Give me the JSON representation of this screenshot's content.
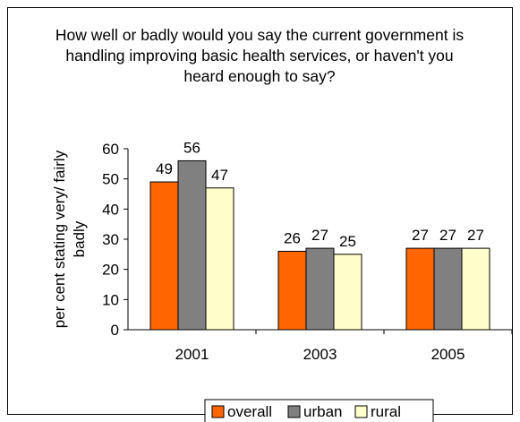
{
  "chart_data": {
    "type": "bar",
    "title": "How well or badly would you say the current government is handling improving basic health services, or haven't you heard enough to say?",
    "ylabel_lines": [
      "per cent stating very/ fairly",
      "badly"
    ],
    "xlabel": "",
    "categories": [
      "2001",
      "2003",
      "2005"
    ],
    "series": [
      {
        "name": "overall",
        "values": [
          49,
          26,
          27
        ],
        "color": "#FF6600"
      },
      {
        "name": "urban",
        "values": [
          56,
          27,
          27
        ],
        "color": "#808080"
      },
      {
        "name": "rural",
        "values": [
          47,
          25,
          27
        ],
        "color": "#FFFFCC"
      }
    ],
    "ylim": [
      0,
      60
    ],
    "yticks": [
      0,
      10,
      20,
      30,
      40,
      50,
      60
    ],
    "grid": false,
    "legend_position": "bottom"
  }
}
